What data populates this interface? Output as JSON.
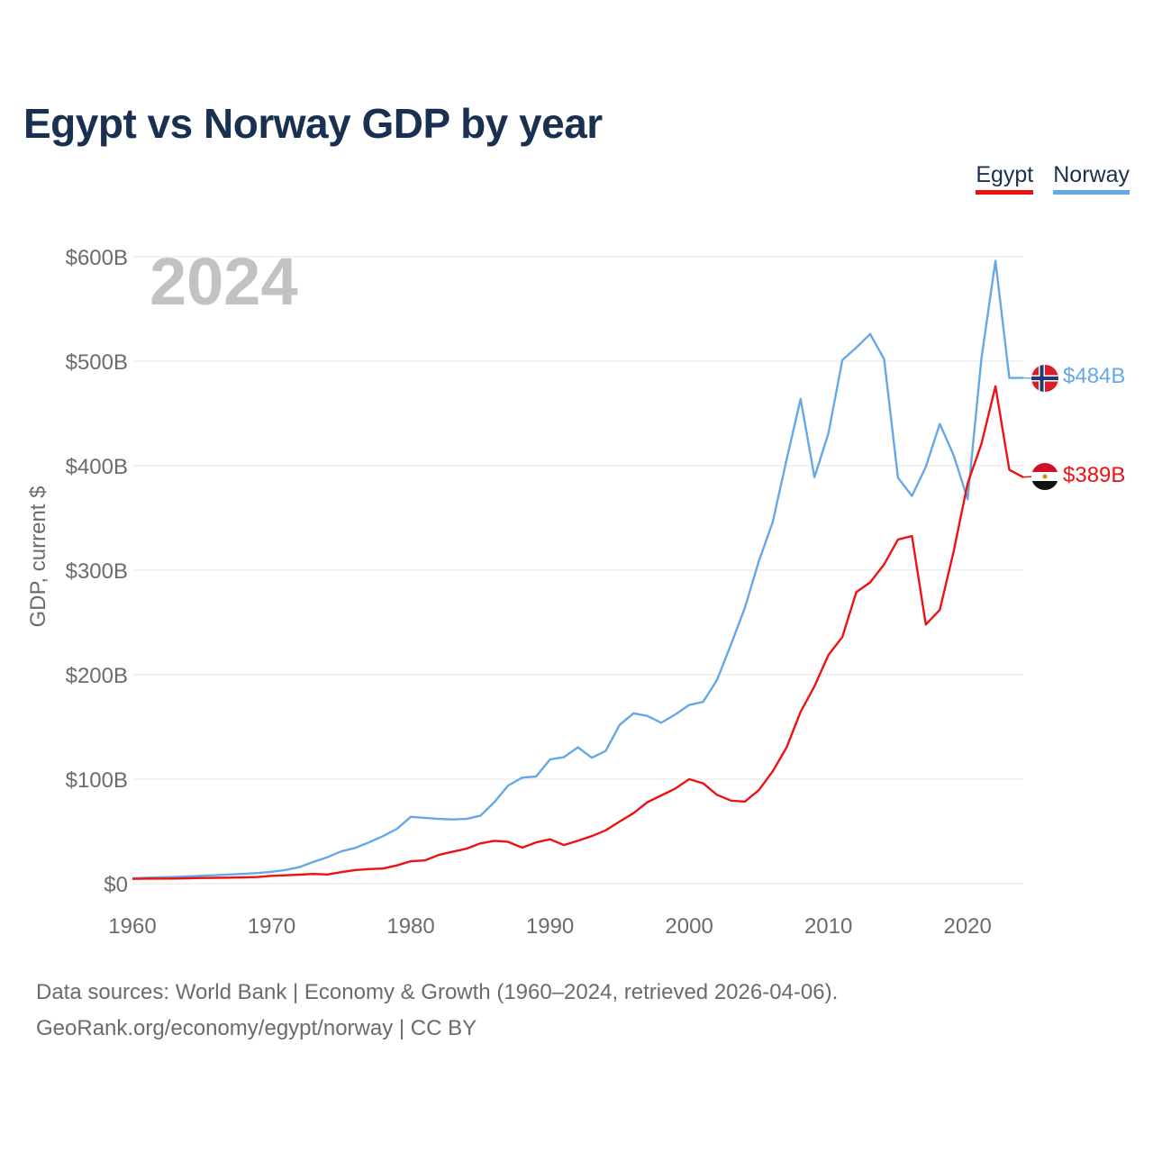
{
  "title": "Egypt vs Norway GDP by year",
  "legend": [
    {
      "name": "Egypt",
      "color": "#ee1111"
    },
    {
      "name": "Norway",
      "color": "#64a8e6"
    }
  ],
  "chart_data": {
    "type": "line",
    "title": "Egypt vs Norway GDP by year",
    "xlabel": "",
    "ylabel": "GDP, current $",
    "year_label": "2024",
    "xlim": [
      1960,
      2024
    ],
    "ylim": [
      0,
      600
    ],
    "y_ticks": [
      0,
      100,
      200,
      300,
      400,
      500,
      600
    ],
    "y_tick_labels": [
      "$0",
      "$100B",
      "$200B",
      "$300B",
      "$400B",
      "$500B",
      "$600B"
    ],
    "x_ticks": [
      1960,
      1970,
      1980,
      1990,
      2000,
      2010,
      2020
    ],
    "x_tick_labels": [
      "1960",
      "1970",
      "1980",
      "1990",
      "2000",
      "2010",
      "2020"
    ],
    "grid": true,
    "x": [
      1960,
      1961,
      1962,
      1963,
      1964,
      1965,
      1966,
      1967,
      1968,
      1969,
      1970,
      1971,
      1972,
      1973,
      1974,
      1975,
      1976,
      1977,
      1978,
      1979,
      1980,
      1981,
      1982,
      1983,
      1984,
      1985,
      1986,
      1987,
      1988,
      1989,
      1990,
      1991,
      1992,
      1993,
      1994,
      1995,
      1996,
      1997,
      1998,
      1999,
      2000,
      2001,
      2002,
      2003,
      2004,
      2005,
      2006,
      2007,
      2008,
      2009,
      2010,
      2011,
      2012,
      2013,
      2014,
      2015,
      2016,
      2017,
      2018,
      2019,
      2020,
      2021,
      2022,
      2023,
      2024
    ],
    "series": [
      {
        "name": "Egypt",
        "color": "#ee1111",
        "end_label": "$389B",
        "values": [
          4.6,
          4.8,
          4.8,
          4.9,
          5.2,
          5.4,
          5.6,
          5.8,
          6.0,
          6.4,
          7.5,
          8.0,
          8.6,
          9.3,
          8.8,
          11,
          13,
          14,
          14.5,
          17.5,
          21.5,
          22.2,
          27.5,
          30.5,
          33.5,
          38.5,
          41,
          40,
          34.5,
          39.5,
          42.5,
          37,
          41,
          45.5,
          51,
          59.5,
          67.5,
          78,
          84.5,
          91,
          100,
          96,
          85,
          79.5,
          78.5,
          89.5,
          107.5,
          130.5,
          164.5,
          189,
          218.9,
          236,
          279,
          288.4,
          305.5,
          329.4,
          332.7,
          248,
          262,
          318,
          383,
          421,
          476,
          396,
          389
        ]
      },
      {
        "name": "Norway",
        "color": "#64a8e6",
        "end_label": "$484B",
        "values": [
          5.2,
          5.6,
          6.0,
          6.4,
          6.9,
          7.6,
          8.1,
          8.8,
          9.4,
          10.2,
          11.4,
          13.1,
          15.9,
          20.8,
          25.3,
          30.9,
          34.2,
          39.6,
          45.5,
          52.4,
          64,
          63,
          62,
          61.5,
          62,
          65,
          78,
          94,
          101.5,
          102.5,
          118.9,
          121,
          130.5,
          120.5,
          127,
          152,
          163,
          160.5,
          154,
          162,
          171,
          174,
          195,
          229,
          264,
          308.5,
          346,
          406,
          464,
          389,
          431,
          501,
          513,
          526,
          502,
          388.5,
          371,
          399,
          440,
          410,
          368,
          503,
          596,
          484,
          484
        ]
      }
    ]
  },
  "footer": {
    "sources": "Data sources: World Bank | Economy & Growth (1960–2024, retrieved 2026-04-06).",
    "credit": "GeoRank.org/economy/egypt/norway | CC BY"
  },
  "icons": {
    "egypt_flag": "egypt-flag-icon",
    "norway_flag": "norway-flag-icon"
  }
}
